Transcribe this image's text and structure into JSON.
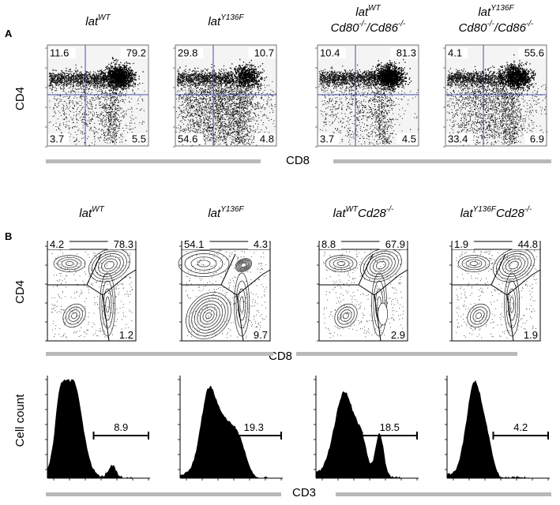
{
  "panels": {
    "A": {
      "label": "A",
      "x_axis": "CD8",
      "y_axis": "CD4",
      "plots": [
        {
          "title_base": "lat",
          "title_sup": "WT",
          "title_line2": "",
          "title_line2_sup": "",
          "quadrants": {
            "tl": "11.6",
            "tr": "79.2",
            "bl": "3.7",
            "br": "5.5"
          }
        },
        {
          "title_base": "lat",
          "title_sup": "Y136F",
          "title_line2": "",
          "title_line2_sup": "",
          "quadrants": {
            "tl": "29.8",
            "tr": "10.7",
            "bl": "54.6",
            "br": "4.8"
          }
        },
        {
          "title_base": "lat",
          "title_sup": "WT",
          "title_line2": "Cd80",
          "title_line2_sup": "-/-",
          "title_line2_b": "/Cd86",
          "title_line2_sup_b": "-/-",
          "quadrants": {
            "tl": "10.4",
            "tr": "81.3",
            "bl": "3.7",
            "br": "4.5"
          }
        },
        {
          "title_base": "lat",
          "title_sup": "Y136F",
          "title_line2": "Cd80",
          "title_line2_sup": "-/-",
          "title_line2_b": "/Cd86",
          "title_line2_sup_b": "-/-",
          "quadrants": {
            "tl": "4.1",
            "tr": "55.6",
            "bl": "33.4",
            "br": "6.9"
          }
        }
      ]
    },
    "B": {
      "label": "B",
      "x_axis": "CD8",
      "y_axis": "CD4",
      "hist_x_axis": "CD3",
      "hist_y_axis": "Cell count",
      "plots": [
        {
          "title_base": "lat",
          "title_sup": "WT",
          "title_suffix": "",
          "title_suffix_sup": "",
          "gates": {
            "tl": "4.2",
            "tr": "78.3",
            "br": "1.2"
          },
          "hist_gate": "8.9"
        },
        {
          "title_base": "lat",
          "title_sup": "Y136F",
          "title_suffix": "",
          "title_suffix_sup": "",
          "gates": {
            "tl": "54.1",
            "tr": "4.3",
            "br": "9.7"
          },
          "hist_gate": "19.3"
        },
        {
          "title_base": "lat",
          "title_sup": "WT",
          "title_suffix": "Cd28",
          "title_suffix_sup": "-/-",
          "gates": {
            "tl": "8.8",
            "tr": "67.9",
            "br": "2.9"
          },
          "hist_gate": "18.5"
        },
        {
          "title_base": "lat",
          "title_sup": "Y136F",
          "title_suffix": "Cd28",
          "title_suffix_sup": "-/-",
          "gates": {
            "tl": "1.9",
            "tr": "44.8",
            "br": "1.9"
          },
          "hist_gate": "4.2"
        }
      ]
    }
  }
}
